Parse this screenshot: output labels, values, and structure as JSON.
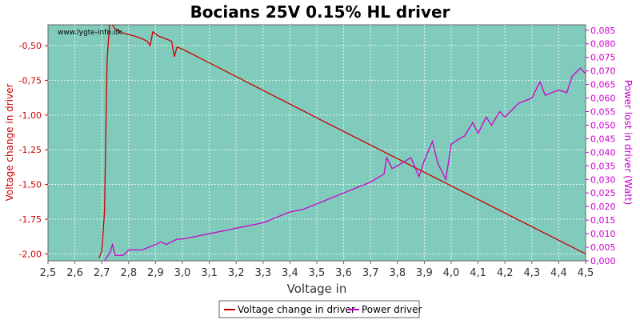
{
  "chart_data": {
    "type": "line",
    "title": "Bocians 25V 0.15% HL driver",
    "watermark": "www.lygte-info.dk",
    "xlabel": "Voltage in",
    "ylabel_left": "Voltage change in driver",
    "ylabel_right": "Power lost in driver (Watt)",
    "xlim": [
      2.5,
      4.5
    ],
    "ylim_left": [
      -2.05,
      -0.35
    ],
    "ylim_right": [
      0,
      0.087
    ],
    "x_ticks": [
      "2,5",
      "2,6",
      "2,7",
      "2,8",
      "2,9",
      "3,0",
      "3,1",
      "3,2",
      "3,3",
      "3,4",
      "3,5",
      "3,6",
      "3,7",
      "3,8",
      "3,9",
      "4,0",
      "4,1",
      "4,2",
      "4,3",
      "4,4",
      "4,5"
    ],
    "y_left_ticks": [
      "-0,50",
      "-0,75",
      "-1,00",
      "-1,25",
      "-1,50",
      "-1,75",
      "-2,00"
    ],
    "y_right_ticks": [
      "0,000",
      "0,005",
      "0,010",
      "0,015",
      "0,020",
      "0,025",
      "0,030",
      "0,035",
      "0,040",
      "0,045",
      "0,050",
      "0,055",
      "0,060",
      "0,065",
      "0,070",
      "0,075",
      "0,080",
      "0,085"
    ],
    "grid": true,
    "legend_position": "bottom",
    "colors": {
      "voltage_change": "#cc0000",
      "power": "#cc00cc",
      "plot_bg": "#80cbbb"
    },
    "series": [
      {
        "name": "Voltage change in driver",
        "axis": "left",
        "points": [
          [
            2.69,
            -2.03
          ],
          [
            2.7,
            -1.98
          ],
          [
            2.71,
            -1.7
          ],
          [
            2.72,
            -0.6
          ],
          [
            2.73,
            -0.32
          ],
          [
            2.75,
            -0.38
          ],
          [
            2.78,
            -0.41
          ],
          [
            2.8,
            -0.42
          ],
          [
            2.82,
            -0.43
          ],
          [
            2.85,
            -0.45
          ],
          [
            2.87,
            -0.47
          ],
          [
            2.88,
            -0.5
          ],
          [
            2.89,
            -0.4
          ],
          [
            2.91,
            -0.43
          ],
          [
            2.95,
            -0.46
          ],
          [
            2.96,
            -0.47
          ],
          [
            2.97,
            -0.58
          ],
          [
            2.98,
            -0.51
          ],
          [
            3.0,
            -0.525
          ],
          [
            3.5,
            -1.02
          ],
          [
            4.0,
            -1.51
          ],
          [
            4.5,
            -2.0
          ]
        ]
      },
      {
        "name": "Power driver",
        "axis": "right",
        "points": [
          [
            2.71,
            0.0
          ],
          [
            2.73,
            0.003
          ],
          [
            2.74,
            0.006
          ],
          [
            2.75,
            0.002
          ],
          [
            2.78,
            0.002
          ],
          [
            2.8,
            0.004
          ],
          [
            2.85,
            0.004
          ],
          [
            2.9,
            0.006
          ],
          [
            2.92,
            0.007
          ],
          [
            2.94,
            0.006
          ],
          [
            2.96,
            0.007
          ],
          [
            2.98,
            0.008
          ],
          [
            3.0,
            0.008
          ],
          [
            3.05,
            0.009
          ],
          [
            3.1,
            0.01
          ],
          [
            3.15,
            0.011
          ],
          [
            3.2,
            0.012
          ],
          [
            3.25,
            0.013
          ],
          [
            3.3,
            0.014
          ],
          [
            3.35,
            0.016
          ],
          [
            3.4,
            0.018
          ],
          [
            3.45,
            0.019
          ],
          [
            3.5,
            0.021
          ],
          [
            3.55,
            0.023
          ],
          [
            3.6,
            0.025
          ],
          [
            3.65,
            0.027
          ],
          [
            3.7,
            0.029
          ],
          [
            3.75,
            0.032
          ],
          [
            3.76,
            0.038
          ],
          [
            3.78,
            0.034
          ],
          [
            3.8,
            0.035
          ],
          [
            3.85,
            0.038
          ],
          [
            3.88,
            0.031
          ],
          [
            3.9,
            0.037
          ],
          [
            3.93,
            0.044
          ],
          [
            3.95,
            0.036
          ],
          [
            3.98,
            0.03
          ],
          [
            4.0,
            0.043
          ],
          [
            4.03,
            0.045
          ],
          [
            4.05,
            0.046
          ],
          [
            4.08,
            0.051
          ],
          [
            4.1,
            0.047
          ],
          [
            4.13,
            0.053
          ],
          [
            4.15,
            0.05
          ],
          [
            4.18,
            0.055
          ],
          [
            4.2,
            0.053
          ],
          [
            4.25,
            0.058
          ],
          [
            4.3,
            0.06
          ],
          [
            4.33,
            0.066
          ],
          [
            4.35,
            0.061
          ],
          [
            4.4,
            0.063
          ],
          [
            4.43,
            0.062
          ],
          [
            4.45,
            0.068
          ],
          [
            4.48,
            0.071
          ],
          [
            4.5,
            0.069
          ]
        ]
      }
    ]
  }
}
